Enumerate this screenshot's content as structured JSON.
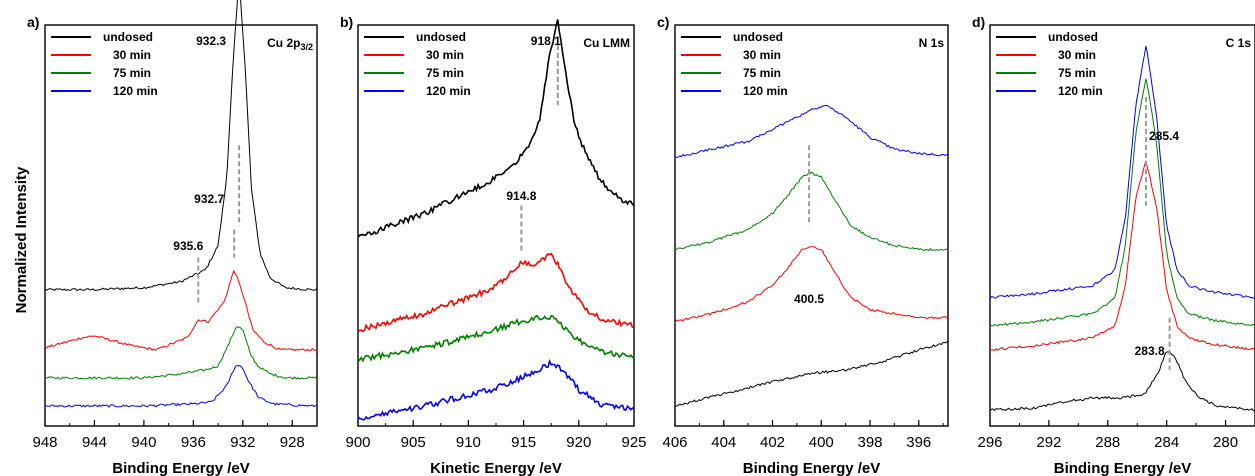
{
  "figure": {
    "ylabel": "Normalized Intensity"
  },
  "chart_data": [
    {
      "type": "line",
      "panel": "a)",
      "region_label": "Cu 2p3/2",
      "region_main": "Cu 2p",
      "region_sub": "3/2",
      "xlabel": "Binding Energy /eV",
      "xlim": [
        948,
        926
      ],
      "x_reversed": true,
      "xticks": [
        948,
        944,
        940,
        936,
        932,
        928
      ],
      "ylim": [
        0,
        1
      ],
      "grid": false,
      "legend": "top-left",
      "colors": {
        "undosed": "#000000",
        "30 min": "#ff0000",
        "75 min": "#008000",
        "120 min": "#0000ff"
      },
      "series": [
        {
          "name": "undosed",
          "offset": 0.34,
          "x": [
            948,
            944,
            940,
            937,
            935,
            934,
            933.3,
            932.8,
            932.3,
            931.8,
            931.3,
            930.6,
            929.8,
            928.6,
            926.5
          ],
          "values": [
            0.0,
            0.0,
            0.005,
            0.02,
            0.05,
            0.11,
            0.28,
            0.56,
            0.78,
            0.55,
            0.25,
            0.09,
            0.03,
            0.005,
            0.0
          ]
        },
        {
          "name": "30 min",
          "offset": 0.19,
          "x": [
            948,
            945,
            944,
            941,
            939,
            936.5,
            935.6,
            934.8,
            933.5,
            932.7,
            932.0,
            931.2,
            930.3,
            929,
            926.5
          ],
          "values": [
            0.005,
            0.03,
            0.035,
            0.01,
            0.0,
            0.03,
            0.075,
            0.07,
            0.12,
            0.2,
            0.14,
            0.05,
            0.02,
            0.0,
            0.0
          ]
        },
        {
          "name": "75 min",
          "offset": 0.12,
          "x": [
            948,
            944,
            940,
            937,
            935,
            934,
            933.2,
            932.5,
            932.0,
            931.4,
            930.8,
            929.8,
            928.5,
            926.5
          ],
          "values": [
            0.0,
            0.0,
            0.0,
            0.01,
            0.02,
            0.03,
            0.08,
            0.13,
            0.12,
            0.06,
            0.03,
            0.01,
            0.0,
            0.0
          ]
        },
        {
          "name": "120 min",
          "offset": 0.05,
          "x": [
            948,
            944,
            940,
            936,
            934.5,
            933.3,
            932.6,
            932.1,
            931.5,
            930.7,
            929.5,
            926.5
          ],
          "values": [
            0.0,
            0.0,
            0.0,
            0.005,
            0.01,
            0.05,
            0.1,
            0.1,
            0.06,
            0.02,
            0.005,
            0.0
          ]
        }
      ],
      "annotations": [
        {
          "text": "932.3",
          "x": 932.3
        },
        {
          "text": "932.7",
          "x": 932.7
        },
        {
          "text": "935.6",
          "x": 935.6
        }
      ]
    },
    {
      "type": "line",
      "panel": "b)",
      "region_label": "Cu LMM",
      "xlabel": "Kinetic Energy /eV",
      "xlim": [
        900,
        925
      ],
      "x_reversed": false,
      "xticks": [
        900,
        905,
        910,
        915,
        920,
        925
      ],
      "ylim": [
        0,
        1
      ],
      "grid": false,
      "legend": "top-left",
      "colors": {
        "undosed": "#000000",
        "30 min": "#ff0000",
        "75 min": "#008000",
        "120 min": "#0000ff"
      },
      "series": [
        {
          "name": "undosed",
          "offset": 0.47,
          "x": [
            900,
            903,
            906,
            909,
            912,
            914,
            915.5,
            916.5,
            917.3,
            918.1,
            918.8,
            919.6,
            920.5,
            922,
            923.5,
            925
          ],
          "values": [
            0.0,
            0.03,
            0.06,
            0.1,
            0.14,
            0.18,
            0.23,
            0.3,
            0.45,
            0.54,
            0.42,
            0.28,
            0.22,
            0.14,
            0.1,
            0.08
          ]
        },
        {
          "name": "30 min",
          "offset": 0.24,
          "x": [
            900,
            903,
            906,
            909,
            912,
            913.5,
            914.8,
            915.8,
            917.0,
            917.6,
            918.3,
            919.5,
            921,
            923,
            925
          ],
          "values": [
            0.0,
            0.02,
            0.04,
            0.07,
            0.1,
            0.13,
            0.17,
            0.16,
            0.18,
            0.19,
            0.15,
            0.09,
            0.04,
            0.02,
            0.01
          ]
        },
        {
          "name": "75 min",
          "offset": 0.165,
          "x": [
            900,
            903,
            906,
            909,
            912,
            914,
            915.5,
            917,
            918,
            919.5,
            921,
            923,
            925
          ],
          "values": [
            0.0,
            0.015,
            0.03,
            0.05,
            0.07,
            0.09,
            0.1,
            0.11,
            0.1,
            0.06,
            0.03,
            0.015,
            0.01
          ]
        },
        {
          "name": "120 min",
          "offset": 0.02,
          "x": [
            900,
            903,
            906,
            909,
            912,
            914,
            915.5,
            917,
            917.6,
            918.5,
            920,
            922,
            925
          ],
          "values": [
            0.0,
            0.015,
            0.03,
            0.05,
            0.07,
            0.09,
            0.11,
            0.13,
            0.14,
            0.12,
            0.07,
            0.035,
            0.02
          ]
        }
      ],
      "annotations": [
        {
          "text": "918.1",
          "x": 918.1
        },
        {
          "text": "914.8",
          "x": 914.8
        }
      ]
    },
    {
      "type": "line",
      "panel": "c)",
      "region_label": "N 1s",
      "xlabel": "Binding Energy /eV",
      "xlim": [
        406,
        394.8
      ],
      "x_reversed": true,
      "xticks": [
        406,
        404,
        402,
        400,
        398,
        396
      ],
      "ylim": [
        0,
        1
      ],
      "grid": false,
      "legend": "top-left",
      "colors": {
        "undosed": "#000000",
        "30 min": "#ff0000",
        "75 min": "#008000",
        "120 min": "#0000ff"
      },
      "series": [
        {
          "name": "undosed",
          "offset": 0.05,
          "x": [
            406,
            404,
            402,
            400.5,
            399,
            397.5,
            396,
            394.8
          ],
          "values": [
            0.0,
            0.03,
            0.06,
            0.08,
            0.09,
            0.11,
            0.14,
            0.16
          ]
        },
        {
          "name": "30 min",
          "offset": 0.26,
          "x": [
            406,
            404.5,
            403,
            402,
            401.3,
            400.8,
            400.4,
            400.0,
            399.5,
            398.8,
            398,
            397,
            396,
            394.8
          ],
          "values": [
            0.0,
            0.02,
            0.05,
            0.09,
            0.14,
            0.18,
            0.19,
            0.18,
            0.13,
            0.06,
            0.03,
            0.02,
            0.01,
            0.01
          ]
        },
        {
          "name": "75 min",
          "offset": 0.44,
          "x": [
            406,
            404.5,
            403,
            402,
            401.3,
            400.8,
            400.4,
            400.0,
            399.5,
            398.8,
            398,
            397,
            396,
            394.8
          ],
          "values": [
            0.0,
            0.02,
            0.05,
            0.09,
            0.14,
            0.18,
            0.19,
            0.18,
            0.13,
            0.06,
            0.03,
            0.01,
            0.0,
            0.0
          ]
        },
        {
          "name": "120 min",
          "offset": 0.67,
          "x": [
            406,
            404.5,
            403,
            402,
            401,
            400.4,
            399.8,
            399,
            398,
            397,
            396,
            394.8
          ],
          "values": [
            0.0,
            0.02,
            0.04,
            0.07,
            0.1,
            0.12,
            0.13,
            0.1,
            0.05,
            0.02,
            0.01,
            0.005
          ]
        }
      ],
      "annotations": [
        {
          "text": "400.5",
          "x": 400.5
        }
      ]
    },
    {
      "type": "line",
      "panel": "d)",
      "region_label": "C 1s",
      "xlabel": "Binding Energy /eV",
      "xlim": [
        296,
        278
      ],
      "x_reversed": true,
      "xticks": [
        296,
        292,
        288,
        284,
        280
      ],
      "ylim": [
        0,
        1
      ],
      "grid": false,
      "legend": "top-left",
      "colors": {
        "undosed": "#000000",
        "30 min": "#ff0000",
        "75 min": "#008000",
        "120 min": "#0000ff"
      },
      "series": [
        {
          "name": "undosed",
          "offset": 0.04,
          "x": [
            296,
            293,
            291,
            289,
            287,
            285.5,
            284.6,
            284.0,
            283.4,
            282.7,
            281.8,
            280.5,
            278
          ],
          "values": [
            0.0,
            0.005,
            0.02,
            0.03,
            0.03,
            0.04,
            0.09,
            0.15,
            0.13,
            0.07,
            0.03,
            0.01,
            0.0
          ]
        },
        {
          "name": "30 min",
          "offset": 0.19,
          "x": [
            296,
            293,
            291,
            289,
            287.5,
            286.8,
            286.1,
            285.4,
            284.7,
            284.0,
            283.3,
            282.5,
            281,
            279,
            278
          ],
          "values": [
            0.0,
            0.01,
            0.02,
            0.03,
            0.06,
            0.16,
            0.38,
            0.47,
            0.36,
            0.15,
            0.06,
            0.03,
            0.015,
            0.005,
            0.0
          ]
        },
        {
          "name": "75 min",
          "offset": 0.25,
          "x": [
            296,
            293,
            291,
            289,
            287.5,
            286.8,
            286.1,
            285.4,
            284.7,
            284.0,
            283.3,
            282.5,
            281,
            279,
            278
          ],
          "values": [
            0.0,
            0.01,
            0.02,
            0.03,
            0.07,
            0.2,
            0.48,
            0.62,
            0.46,
            0.18,
            0.07,
            0.03,
            0.015,
            0.005,
            0.0
          ]
        },
        {
          "name": "120 min",
          "offset": 0.32,
          "x": [
            296,
            293,
            291,
            289,
            287.5,
            286.8,
            286.1,
            285.4,
            284.7,
            284.0,
            283.3,
            282.5,
            281,
            279,
            278
          ],
          "values": [
            0.0,
            0.01,
            0.02,
            0.03,
            0.07,
            0.2,
            0.48,
            0.63,
            0.46,
            0.18,
            0.07,
            0.03,
            0.015,
            0.005,
            0.0
          ]
        }
      ],
      "annotations": [
        {
          "text": "285.4",
          "x": 285.4
        },
        {
          "text": "283.8",
          "x": 283.8
        }
      ]
    }
  ]
}
